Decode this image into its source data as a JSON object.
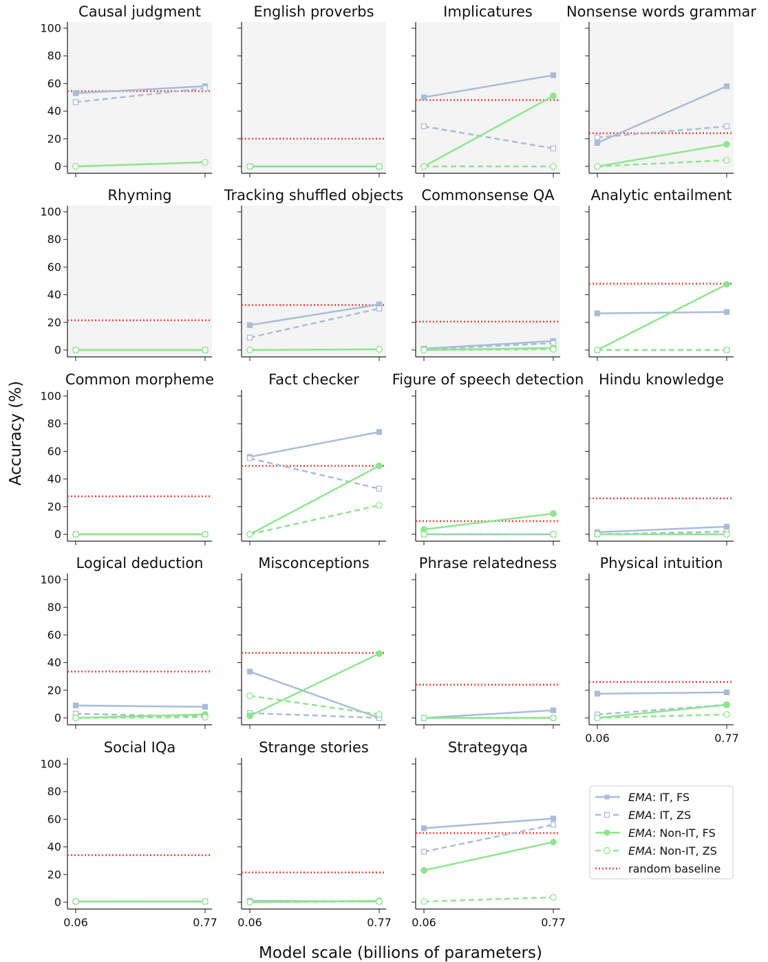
{
  "figure": {
    "xlabel": "Model scale (billions of parameters)",
    "ylabel": "Accuracy (%)",
    "x_ticks": [
      "0.06",
      "0.77"
    ],
    "y_ticks": [
      "0",
      "20",
      "40",
      "60",
      "80",
      "100"
    ]
  },
  "legend": {
    "prefix": "EMA",
    "labels": [
      ": IT, FS",
      ": IT, ZS",
      ": Non-IT, FS",
      ": Non-IT, ZS"
    ],
    "baseline_label": "random baseline"
  },
  "colors": {
    "it": "#a9bcd8",
    "non_it": "#8ee58e",
    "baseline": "#e8463d",
    "panel_bg": "#f4f4f4"
  },
  "chart_data": [
    {
      "type": "line",
      "title": "Causal judgment",
      "x": [
        0.06,
        0.77
      ],
      "ylim": [
        0,
        100
      ],
      "shaded": true,
      "baseline": 54.5,
      "series": [
        {
          "name": "EMA: IT, FS",
          "values": [
            53,
            58
          ]
        },
        {
          "name": "EMA: IT, ZS",
          "values": [
            46.5,
            56.5
          ]
        },
        {
          "name": "EMA: Non-IT, FS",
          "values": [
            0,
            3
          ]
        },
        {
          "name": "EMA: Non-IT, ZS",
          "values": [
            0,
            3
          ]
        }
      ]
    },
    {
      "type": "line",
      "title": "English proverbs",
      "x": [
        0.06,
        0.77
      ],
      "ylim": [
        0,
        100
      ],
      "shaded": true,
      "baseline": 20,
      "series": [
        {
          "name": "EMA: IT, FS",
          "values": [
            0,
            0
          ]
        },
        {
          "name": "EMA: IT, ZS",
          "values": [
            0,
            0
          ]
        },
        {
          "name": "EMA: Non-IT, FS",
          "values": [
            0,
            0
          ]
        },
        {
          "name": "EMA: Non-IT, ZS",
          "values": [
            0,
            0
          ]
        }
      ]
    },
    {
      "type": "line",
      "title": "Implicatures",
      "x": [
        0.06,
        0.77
      ],
      "ylim": [
        0,
        100
      ],
      "shaded": true,
      "baseline": 48,
      "series": [
        {
          "name": "EMA: IT, FS",
          "values": [
            50,
            66
          ]
        },
        {
          "name": "EMA: IT, ZS",
          "values": [
            29,
            13
          ]
        },
        {
          "name": "EMA: Non-IT, FS",
          "values": [
            0,
            51
          ]
        },
        {
          "name": "EMA: Non-IT, ZS",
          "values": [
            0,
            0
          ]
        }
      ]
    },
    {
      "type": "line",
      "title": "Nonsense words grammar",
      "x": [
        0.06,
        0.77
      ],
      "ylim": [
        0,
        100
      ],
      "shaded": true,
      "baseline": 24,
      "series": [
        {
          "name": "EMA: IT, FS",
          "values": [
            17,
            58
          ]
        },
        {
          "name": "EMA: IT, ZS",
          "values": [
            21,
            29
          ]
        },
        {
          "name": "EMA: Non-IT, FS",
          "values": [
            0,
            16
          ]
        },
        {
          "name": "EMA: Non-IT, ZS",
          "values": [
            0,
            4.5
          ]
        }
      ]
    },
    {
      "type": "line",
      "title": "Rhyming",
      "x": [
        0.06,
        0.77
      ],
      "ylim": [
        0,
        100
      ],
      "shaded": true,
      "baseline": 21.5,
      "series": [
        {
          "name": "EMA: IT, FS",
          "values": [
            0,
            0
          ]
        },
        {
          "name": "EMA: IT, ZS",
          "values": [
            0,
            0
          ]
        },
        {
          "name": "EMA: Non-IT, FS",
          "values": [
            0,
            0
          ]
        },
        {
          "name": "EMA: Non-IT, ZS",
          "values": [
            0,
            0
          ]
        }
      ]
    },
    {
      "type": "line",
      "title": "Tracking shuffled objects",
      "x": [
        0.06,
        0.77
      ],
      "ylim": [
        0,
        100
      ],
      "shaded": true,
      "baseline": 32.5,
      "series": [
        {
          "name": "EMA: IT, FS",
          "values": [
            18,
            33
          ]
        },
        {
          "name": "EMA: IT, ZS",
          "values": [
            9,
            30
          ]
        },
        {
          "name": "EMA: Non-IT, FS",
          "values": [
            0,
            0.5
          ]
        },
        {
          "name": "EMA: Non-IT, ZS",
          "values": [
            0,
            0.5
          ]
        }
      ]
    },
    {
      "type": "line",
      "title": "Commonsense QA",
      "x": [
        0.06,
        0.77
      ],
      "ylim": [
        0,
        100
      ],
      "shaded": true,
      "baseline": 20.5,
      "series": [
        {
          "name": "EMA: IT, FS",
          "values": [
            1,
            6.5
          ]
        },
        {
          "name": "EMA: IT, ZS",
          "values": [
            0.5,
            5
          ]
        },
        {
          "name": "EMA: Non-IT, FS",
          "values": [
            0,
            1.5
          ]
        },
        {
          "name": "EMA: Non-IT, ZS",
          "values": [
            0,
            0.5
          ]
        }
      ]
    },
    {
      "type": "line",
      "title": "Analytic entailment",
      "x": [
        0.06,
        0.77
      ],
      "ylim": [
        0,
        100
      ],
      "shaded": false,
      "baseline": 48,
      "series": [
        {
          "name": "EMA: IT, FS",
          "values": [
            26.5,
            27.5
          ]
        },
        {
          "name": "EMA: IT, ZS",
          "values": [
            0,
            0
          ]
        },
        {
          "name": "EMA: Non-IT, FS",
          "values": [
            0,
            47.5
          ]
        },
        {
          "name": "EMA: Non-IT, ZS",
          "values": [
            0,
            0
          ]
        }
      ]
    },
    {
      "type": "line",
      "title": "Common morpheme",
      "x": [
        0.06,
        0.77
      ],
      "ylim": [
        0,
        100
      ],
      "shaded": false,
      "baseline": 27.5,
      "series": [
        {
          "name": "EMA: IT, FS",
          "values": [
            0,
            0
          ]
        },
        {
          "name": "EMA: IT, ZS",
          "values": [
            0,
            0
          ]
        },
        {
          "name": "EMA: Non-IT, FS",
          "values": [
            0,
            0
          ]
        },
        {
          "name": "EMA: Non-IT, ZS",
          "values": [
            0,
            0
          ]
        }
      ]
    },
    {
      "type": "line",
      "title": "Fact checker",
      "x": [
        0.06,
        0.77
      ],
      "ylim": [
        0,
        100
      ],
      "shaded": false,
      "baseline": 49.5,
      "series": [
        {
          "name": "EMA: IT, FS",
          "values": [
            56,
            74
          ]
        },
        {
          "name": "EMA: IT, ZS",
          "values": [
            55,
            33
          ]
        },
        {
          "name": "EMA: Non-IT, FS",
          "values": [
            0,
            49.5
          ]
        },
        {
          "name": "EMA: Non-IT, ZS",
          "values": [
            0,
            21
          ]
        }
      ]
    },
    {
      "type": "line",
      "title": "Figure of speech detection",
      "x": [
        0.06,
        0.77
      ],
      "ylim": [
        0,
        100
      ],
      "shaded": false,
      "baseline": 9.5,
      "series": [
        {
          "name": "EMA: IT, FS",
          "values": [
            0,
            0
          ]
        },
        {
          "name": "EMA: IT, ZS",
          "values": [
            0,
            0
          ]
        },
        {
          "name": "EMA: Non-IT, FS",
          "values": [
            3.5,
            15
          ]
        },
        {
          "name": "EMA: Non-IT, ZS",
          "values": [
            0,
            0
          ]
        }
      ]
    },
    {
      "type": "line",
      "title": "Hindu knowledge",
      "x": [
        0.06,
        0.77
      ],
      "ylim": [
        0,
        100
      ],
      "shaded": false,
      "baseline": 26,
      "series": [
        {
          "name": "EMA: IT, FS",
          "values": [
            1.5,
            5.5
          ]
        },
        {
          "name": "EMA: IT, ZS",
          "values": [
            0,
            2
          ]
        },
        {
          "name": "EMA: Non-IT, FS",
          "values": [
            0,
            0
          ]
        },
        {
          "name": "EMA: Non-IT, ZS",
          "values": [
            0,
            0
          ]
        }
      ]
    },
    {
      "type": "line",
      "title": "Logical deduction",
      "x": [
        0.06,
        0.77
      ],
      "ylim": [
        0,
        100
      ],
      "shaded": false,
      "baseline": 33.5,
      "series": [
        {
          "name": "EMA: IT, FS",
          "values": [
            9,
            8
          ]
        },
        {
          "name": "EMA: IT, ZS",
          "values": [
            3,
            1
          ]
        },
        {
          "name": "EMA: Non-IT, FS",
          "values": [
            0,
            2.5
          ]
        },
        {
          "name": "EMA: Non-IT, ZS",
          "values": [
            0,
            0.5
          ]
        }
      ]
    },
    {
      "type": "line",
      "title": "Misconceptions",
      "x": [
        0.06,
        0.77
      ],
      "ylim": [
        0,
        100
      ],
      "shaded": false,
      "baseline": 47,
      "series": [
        {
          "name": "EMA: IT, FS",
          "values": [
            33.5,
            0
          ]
        },
        {
          "name": "EMA: IT, ZS",
          "values": [
            3.5,
            0
          ]
        },
        {
          "name": "EMA: Non-IT, FS",
          "values": [
            1.5,
            46.5
          ]
        },
        {
          "name": "EMA: Non-IT, ZS",
          "values": [
            16,
            2.5
          ]
        }
      ]
    },
    {
      "type": "line",
      "title": "Phrase relatedness",
      "x": [
        0.06,
        0.77
      ],
      "ylim": [
        0,
        100
      ],
      "shaded": false,
      "baseline": 24,
      "series": [
        {
          "name": "EMA: IT, FS",
          "values": [
            0,
            5.5
          ]
        },
        {
          "name": "EMA: IT, ZS",
          "values": [
            0,
            0
          ]
        },
        {
          "name": "EMA: Non-IT, FS",
          "values": [
            0,
            0
          ]
        },
        {
          "name": "EMA: Non-IT, ZS",
          "values": [
            0,
            0
          ]
        }
      ]
    },
    {
      "type": "line",
      "title": "Physical intuition",
      "x": [
        0.06,
        0.77
      ],
      "ylim": [
        0,
        100
      ],
      "shaded": false,
      "baseline": 26,
      "series": [
        {
          "name": "EMA: IT, FS",
          "values": [
            17.5,
            18.5
          ]
        },
        {
          "name": "EMA: IT, ZS",
          "values": [
            2.5,
            9.5
          ]
        },
        {
          "name": "EMA: Non-IT, FS",
          "values": [
            0,
            9.5
          ]
        },
        {
          "name": "EMA: Non-IT, ZS",
          "values": [
            0,
            2.5
          ]
        }
      ]
    },
    {
      "type": "line",
      "title": "Social IQa",
      "x": [
        0.06,
        0.77
      ],
      "ylim": [
        0,
        100
      ],
      "shaded": false,
      "baseline": 34,
      "series": [
        {
          "name": "EMA: IT, FS",
          "values": [
            0.5,
            0.5
          ]
        },
        {
          "name": "EMA: IT, ZS",
          "values": [
            0.5,
            0.5
          ]
        },
        {
          "name": "EMA: Non-IT, FS",
          "values": [
            0.5,
            0.5
          ]
        },
        {
          "name": "EMA: Non-IT, ZS",
          "values": [
            0.5,
            0.5
          ]
        }
      ]
    },
    {
      "type": "line",
      "title": "Strange stories",
      "x": [
        0.06,
        0.77
      ],
      "ylim": [
        0,
        100
      ],
      "shaded": false,
      "baseline": 21.5,
      "series": [
        {
          "name": "EMA: IT, FS",
          "values": [
            1,
            0.5
          ]
        },
        {
          "name": "EMA: IT, ZS",
          "values": [
            0.5,
            0.5
          ]
        },
        {
          "name": "EMA: Non-IT, FS",
          "values": [
            0,
            1
          ]
        },
        {
          "name": "EMA: Non-IT, ZS",
          "values": [
            0,
            0.5
          ]
        }
      ]
    },
    {
      "type": "line",
      "title": "Strategyqa",
      "x": [
        0.06,
        0.77
      ],
      "ylim": [
        0,
        100
      ],
      "shaded": false,
      "baseline": 50,
      "series": [
        {
          "name": "EMA: IT, FS",
          "values": [
            53.5,
            60.5
          ]
        },
        {
          "name": "EMA: IT, ZS",
          "values": [
            36.5,
            56
          ]
        },
        {
          "name": "EMA: Non-IT, FS",
          "values": [
            23,
            43.5
          ]
        },
        {
          "name": "EMA: Non-IT, ZS",
          "values": [
            0.5,
            3.5
          ]
        }
      ]
    }
  ]
}
